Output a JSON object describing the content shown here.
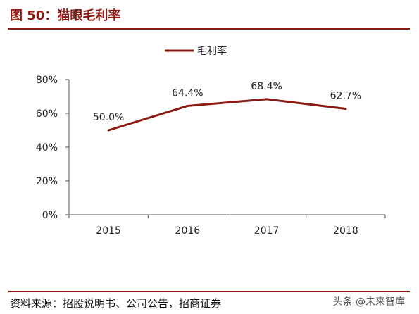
{
  "header": {
    "title": "图 50：猫眼毛利率"
  },
  "footer": {
    "source": "资料来源：招股说明书、公司公告，招商证券",
    "watermark": "头条 @未来智库"
  },
  "colors": {
    "accent": "#8a1a12",
    "series": "#8a1a12"
  },
  "chart_data": {
    "type": "line",
    "title": "",
    "xlabel": "",
    "ylabel": "",
    "categories": [
      "2015",
      "2016",
      "2017",
      "2018"
    ],
    "series": [
      {
        "name": "毛利率",
        "values": [
          50.0,
          64.4,
          68.4,
          62.7
        ],
        "labels": [
          "50.0%",
          "64.4%",
          "68.4%",
          "62.7%"
        ]
      }
    ],
    "yticks": [
      "0%",
      "20%",
      "40%",
      "60%",
      "80%"
    ],
    "ylim": [
      0,
      80
    ],
    "grid": false,
    "legend": "top-center"
  }
}
